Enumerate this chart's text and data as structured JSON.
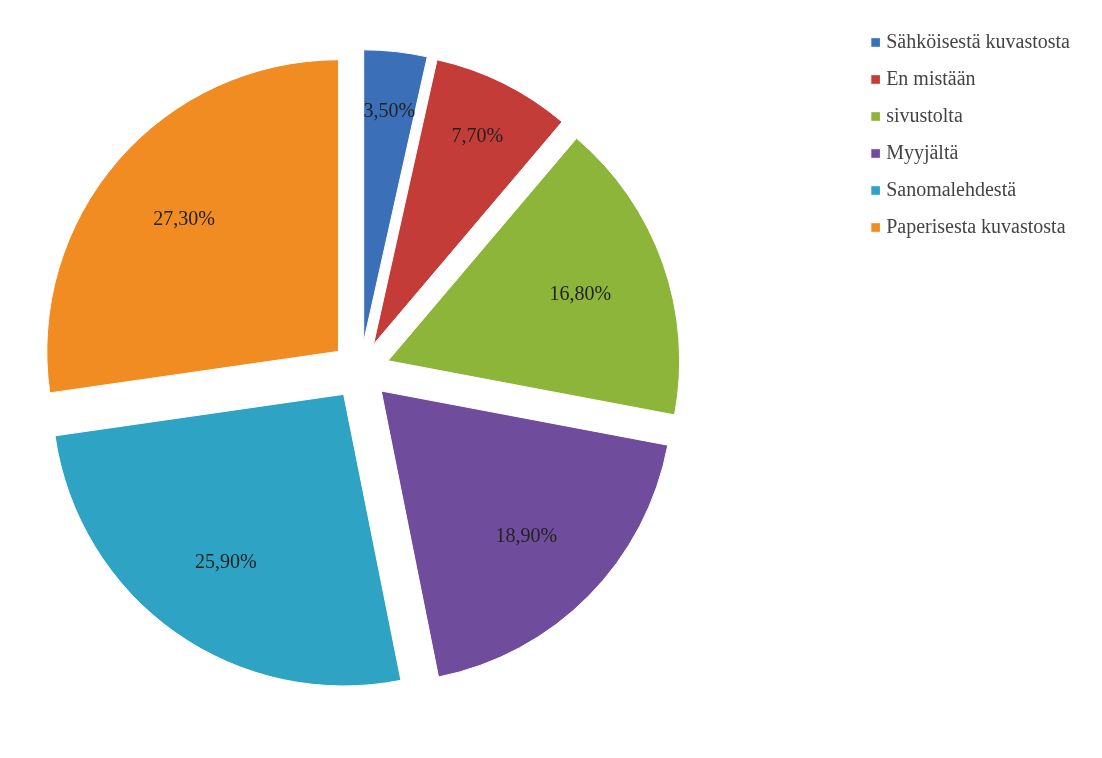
{
  "chart_data": {
    "type": "pie",
    "categories": [
      "Sähköisestä kuvastosta",
      "En mistään",
      "sivustolta",
      "Myyjältä",
      "Sanomalehdestä",
      "Paperisesta kuvastosta"
    ],
    "values": [
      3.5,
      7.7,
      16.8,
      18.9,
      25.9,
      27.3
    ],
    "colors": [
      "#3b70b8",
      "#c43c38",
      "#8db53a",
      "#6f4c9c",
      "#2fa3c4",
      "#f08c22"
    ],
    "value_labels": [
      "3,50%",
      "7,70%",
      "16,80%",
      "18,90%",
      "25,90%",
      "27,30%"
    ],
    "legend": "right"
  }
}
